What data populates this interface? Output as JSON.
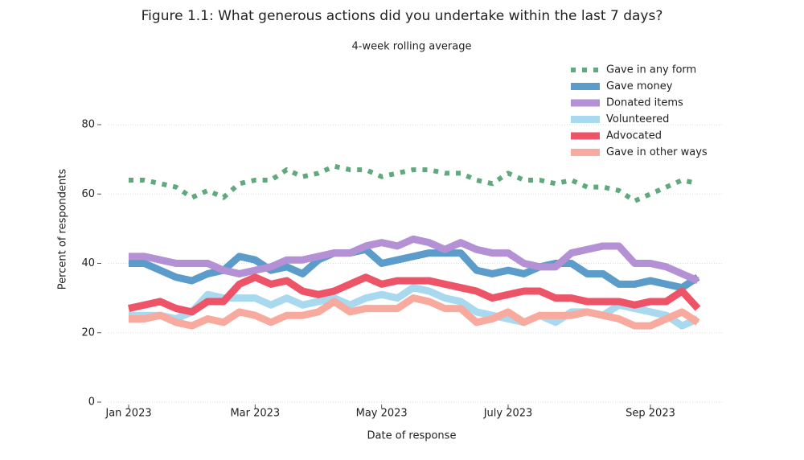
{
  "chart_data": {
    "type": "line",
    "title": "Figure 1.1: What generous actions did you undertake within the last 7 days?",
    "subtitle": "4-week rolling average",
    "x_label": "Date of response",
    "y_label": "Percent of respondents",
    "categories": [
      "Jan 2023",
      null,
      null,
      null,
      null,
      null,
      null,
      null,
      "Mar 2023",
      null,
      null,
      null,
      null,
      null,
      null,
      null,
      "May 2023",
      null,
      null,
      null,
      null,
      null,
      null,
      null,
      "July 2023",
      null,
      null,
      null,
      null,
      null,
      null,
      null,
      null,
      "Sep 2023",
      null,
      null,
      null
    ],
    "ylim": [
      0,
      80
    ],
    "yticks": [
      0,
      20,
      40,
      60,
      80
    ],
    "grid": true,
    "legend": "upper right",
    "series": [
      {
        "name": "Gave in any form",
        "color": "#5fa97d",
        "style": "dotted",
        "values": [
          64,
          64,
          63,
          62,
          59,
          61,
          59,
          63,
          64,
          64,
          67,
          65,
          66,
          68,
          67,
          67,
          65,
          66,
          67,
          67,
          66,
          66,
          64,
          63,
          66,
          64,
          64,
          63,
          64,
          62,
          62,
          61,
          58,
          60,
          62,
          64,
          63
        ]
      },
      {
        "name": "Gave money",
        "color": "#5b9cca",
        "style": "solid",
        "values": [
          40,
          40,
          38,
          36,
          35,
          37,
          38,
          42,
          41,
          38,
          39,
          37,
          41,
          43,
          43,
          44,
          40,
          41,
          42,
          43,
          43,
          43,
          38,
          37,
          38,
          37,
          39,
          40,
          40,
          37,
          37,
          34,
          34,
          35,
          34,
          33,
          36
        ]
      },
      {
        "name": "Donated items",
        "color": "#b490d4",
        "style": "solid",
        "values": [
          42,
          42,
          41,
          40,
          40,
          40,
          38,
          37,
          38,
          39,
          41,
          41,
          42,
          43,
          43,
          45,
          46,
          45,
          47,
          46,
          44,
          46,
          44,
          43,
          43,
          40,
          39,
          39,
          43,
          44,
          45,
          45,
          40,
          40,
          39,
          37,
          35
        ]
      },
      {
        "name": "Volunteered",
        "color": "#a8d9ef",
        "style": "solid",
        "values": [
          25,
          25,
          25,
          24,
          26,
          31,
          30,
          30,
          30,
          28,
          30,
          28,
          29,
          30,
          28,
          30,
          31,
          30,
          33,
          32,
          30,
          29,
          26,
          25,
          24,
          23,
          25,
          23,
          26,
          26,
          25,
          28,
          27,
          26,
          25,
          22,
          24
        ]
      },
      {
        "name": "Advocated",
        "color": "#ee5468",
        "style": "solid",
        "values": [
          27,
          28,
          29,
          27,
          26,
          29,
          29,
          34,
          36,
          34,
          35,
          32,
          31,
          32,
          34,
          36,
          34,
          35,
          35,
          35,
          34,
          33,
          32,
          30,
          31,
          32,
          32,
          30,
          30,
          29,
          29,
          29,
          28,
          29,
          29,
          32,
          27
        ]
      },
      {
        "name": "Gave in other ways",
        "color": "#f7aa9d",
        "style": "solid",
        "values": [
          24,
          24,
          25,
          23,
          22,
          24,
          23,
          26,
          25,
          23,
          25,
          25,
          26,
          29,
          26,
          27,
          27,
          27,
          30,
          29,
          27,
          27,
          23,
          24,
          26,
          23,
          25,
          25,
          25,
          26,
          25,
          24,
          22,
          22,
          24,
          26,
          23
        ]
      }
    ]
  }
}
